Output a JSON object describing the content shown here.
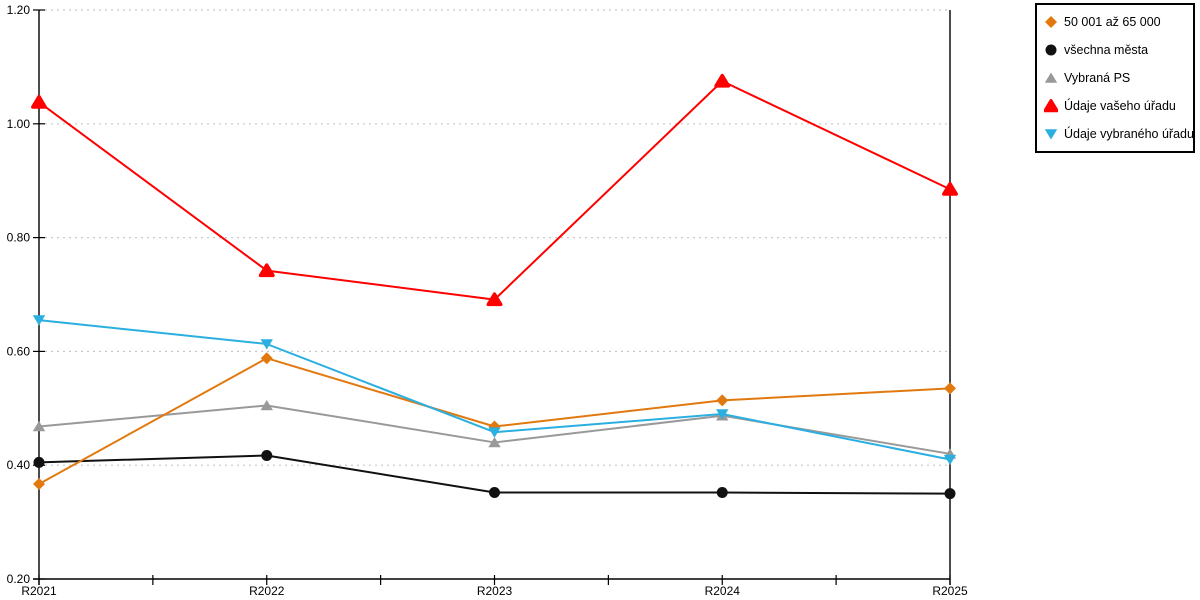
{
  "chart_data": {
    "type": "line",
    "categories": [
      "R2021",
      "R2022",
      "R2023",
      "R2024",
      "R2025"
    ],
    "series": [
      {
        "name": "50 001 až 65 000",
        "marker": "diamond",
        "color": "#E2790F",
        "values": [
          0.367,
          0.588,
          0.468,
          0.514,
          0.535
        ]
      },
      {
        "name": "všechna města",
        "marker": "circle",
        "color": "#111111",
        "values": [
          0.405,
          0.417,
          0.352,
          0.352,
          0.35
        ]
      },
      {
        "name": "Vybraná PS",
        "marker": "triangle-up",
        "color": "#999999",
        "values": [
          0.468,
          0.505,
          0.44,
          0.487,
          0.42
        ]
      },
      {
        "name": "Údaje vašeho úřadu",
        "marker": "triangle-up-rounded",
        "color": "#FF0000",
        "values": [
          1.038,
          0.742,
          0.691,
          1.075,
          0.885
        ]
      },
      {
        "name": "Údaje vybraného úřadu",
        "marker": "triangle-down",
        "color": "#2BAFE0",
        "values": [
          0.655,
          0.613,
          0.458,
          0.49,
          0.41
        ]
      }
    ],
    "ylim": [
      0.2,
      1.2
    ],
    "ytick_step": 0.2,
    "y_tick_labels": [
      "0.20",
      "0.40",
      "0.60",
      "0.80",
      "1.00",
      "1.20"
    ],
    "title": "",
    "xlabel": "",
    "ylabel": "",
    "grid": "horizontal-dotted",
    "legend_position": "top-right"
  },
  "colors": {
    "grid": "#C8C8C8",
    "axis": "#000000",
    "text": "#000000",
    "background": "#FFFFFF",
    "legend_border": "#000000"
  }
}
